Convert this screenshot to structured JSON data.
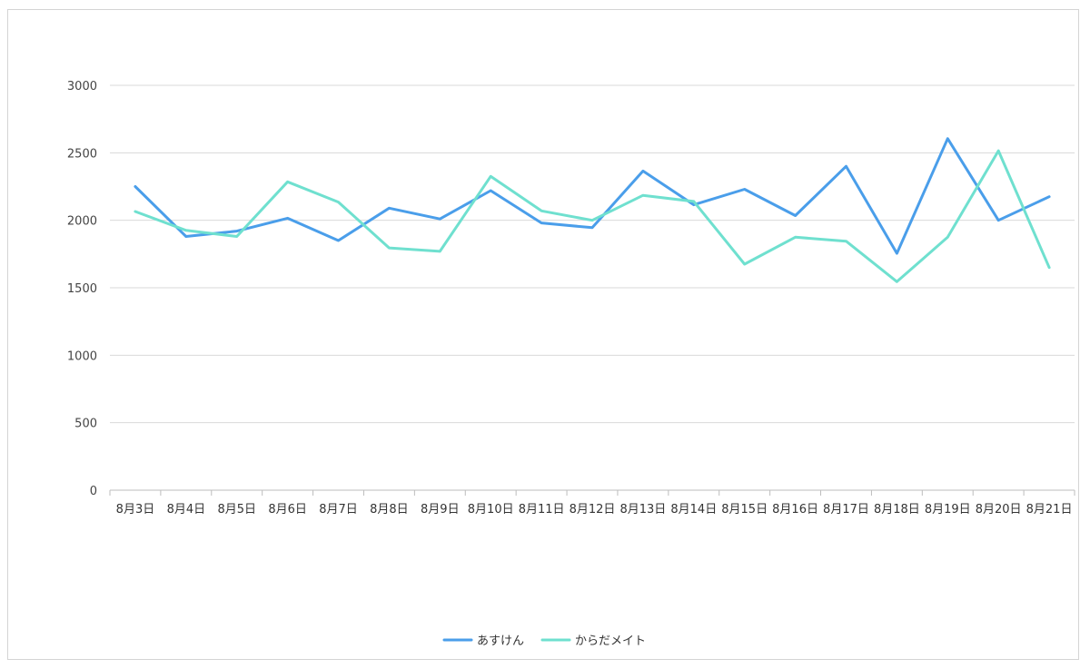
{
  "chart_data": {
    "type": "line",
    "title": "",
    "xlabel": "",
    "ylabel": "",
    "ylim": [
      0,
      3000
    ],
    "yticks": [
      0,
      500,
      1000,
      1500,
      2000,
      2500,
      3000
    ],
    "grid": true,
    "legend_position": "bottom",
    "categories": [
      "8月3日",
      "8月4日",
      "8月5日",
      "8月6日",
      "8月7日",
      "8月8日",
      "8月9日",
      "8月10日",
      "8月11日",
      "8月12日",
      "8月13日",
      "8月14日",
      "8月15日",
      "8月16日",
      "8月17日",
      "8月18日",
      "8月19日",
      "8月20日",
      "8月21日"
    ],
    "series": [
      {
        "name": "あすけん",
        "color": "#4a9eea",
        "values": [
          2250,
          1880,
          1920,
          2015,
          1850,
          2090,
          2010,
          2220,
          1980,
          1945,
          2365,
          2115,
          2230,
          2035,
          2400,
          1755,
          2605,
          2000,
          2175
        ]
      },
      {
        "name": "からだメイト",
        "color": "#6fe0cf",
        "values": [
          2065,
          1925,
          1880,
          2285,
          2135,
          1795,
          1770,
          2325,
          2070,
          2000,
          2185,
          2140,
          1675,
          1875,
          1845,
          1545,
          1875,
          2515,
          1650
        ]
      }
    ]
  }
}
